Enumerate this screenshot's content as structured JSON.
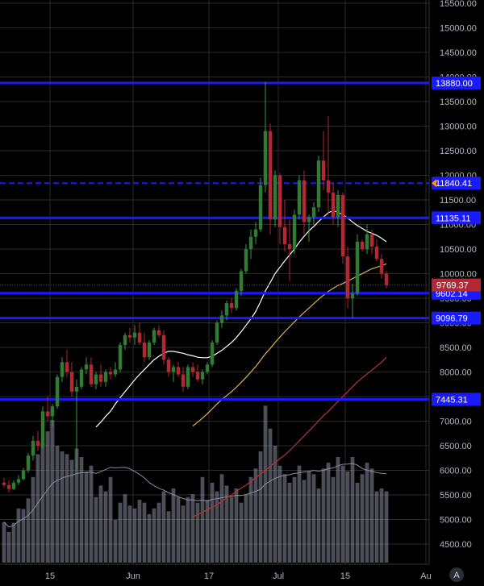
{
  "chart_data": {
    "type": "candlestick",
    "y_axis": {
      "ticks": [
        4500,
        5000,
        5500,
        6000,
        6500,
        7000,
        7500,
        8000,
        8500,
        9000,
        9500,
        10000,
        10500,
        11000,
        11500,
        12000,
        12500,
        13000,
        13500,
        14000,
        14500,
        15000,
        15500
      ],
      "tick_labels": [
        "4500.00",
        "5000.00",
        "5500.00",
        "6000.00",
        "6500.00",
        "7000.00",
        "7500.00",
        "8000.00",
        "8500.00",
        "9000.00",
        "9500.00",
        "10000.00",
        "10500.00",
        "11000.00",
        "11500.00",
        "12000.00",
        "12500.00",
        "13000.00",
        "13500.00",
        "14000.00",
        "14500.00",
        "15000.00",
        "15500.00"
      ],
      "ylim": [
        4350,
        15550
      ]
    },
    "x_axis": {
      "tick_labels": [
        "15",
        "Jun",
        "17",
        "Jul",
        "15",
        "Au"
      ]
    },
    "horizontal_levels": [
      {
        "value": 13880.0,
        "label": "13880.00",
        "style": "solid",
        "color": "#1a1aff"
      },
      {
        "value": 11840.41,
        "label": "11840.41",
        "style": "dashed",
        "color": "#1a1aff"
      },
      {
        "value": 11135.11,
        "label": "11135.11",
        "style": "solid",
        "color": "#1a1aff"
      },
      {
        "value": 9602.14,
        "label": "9602.14",
        "style": "solid",
        "color": "#1a1aff"
      },
      {
        "value": 9096.79,
        "label": "9096.79",
        "style": "solid",
        "color": "#1a1aff"
      },
      {
        "value": 7445.31,
        "label": "7445.31",
        "style": "solid",
        "color": "#1a1aff"
      }
    ],
    "last_price": {
      "value": 9769.37,
      "label": "9769.37",
      "color": "#b22833"
    },
    "candles": [
      [
        5750,
        5850,
        5650,
        5700
      ],
      [
        5700,
        5800,
        5550,
        5620
      ],
      [
        5620,
        5800,
        5600,
        5750
      ],
      [
        5750,
        5900,
        5700,
        5820
      ],
      [
        5820,
        6050,
        5800,
        6000
      ],
      [
        6000,
        6350,
        5950,
        6300
      ],
      [
        6300,
        6700,
        6200,
        6600
      ],
      [
        6600,
        6800,
        6400,
        6500
      ],
      [
        6500,
        7300,
        6450,
        7200
      ],
      [
        7200,
        7500,
        7000,
        7100
      ],
      [
        7100,
        7350,
        6900,
        7300
      ],
      [
        7300,
        7950,
        7250,
        7900
      ],
      [
        7900,
        8300,
        7800,
        8200
      ],
      [
        8200,
        8450,
        7900,
        8000
      ],
      [
        8000,
        8200,
        7500,
        7600
      ],
      [
        7600,
        7850,
        6000,
        7700
      ],
      [
        7700,
        8100,
        7650,
        8050
      ],
      [
        8050,
        8300,
        7950,
        8150
      ],
      [
        8150,
        8300,
        7700,
        7750
      ],
      [
        7750,
        8000,
        7650,
        7950
      ],
      [
        7950,
        8150,
        7700,
        7800
      ],
      [
        7800,
        8050,
        7700,
        8000
      ],
      [
        8000,
        8100,
        7850,
        7950
      ],
      [
        7950,
        8200,
        7900,
        8050
      ],
      [
        8050,
        8600,
        8000,
        8550
      ],
      [
        8550,
        8800,
        8450,
        8750
      ],
      [
        8750,
        8900,
        8600,
        8700
      ],
      [
        8700,
        8950,
        8550,
        8800
      ],
      [
        8800,
        9000,
        8550,
        8600
      ],
      [
        8600,
        8800,
        8200,
        8300
      ],
      [
        8300,
        8650,
        8250,
        8600
      ],
      [
        8600,
        8900,
        8550,
        8850
      ],
      [
        8850,
        8950,
        8700,
        8750
      ],
      [
        8750,
        8850,
        8150,
        8250
      ],
      [
        8250,
        8300,
        7900,
        8000
      ],
      [
        8000,
        8150,
        7800,
        8100
      ],
      [
        8100,
        8200,
        7900,
        7950
      ],
      [
        7950,
        8100,
        7600,
        7700
      ],
      [
        7700,
        8150,
        7650,
        8100
      ],
      [
        8100,
        8200,
        7900,
        8000
      ],
      [
        8000,
        8150,
        7800,
        7850
      ],
      [
        7850,
        8050,
        7750,
        8000
      ],
      [
        8000,
        8200,
        7950,
        8150
      ],
      [
        8150,
        8650,
        8100,
        8600
      ],
      [
        8600,
        9050,
        8550,
        9000
      ],
      [
        9000,
        9250,
        8900,
        9150
      ],
      [
        9150,
        9450,
        9050,
        9400
      ],
      [
        9400,
        9500,
        9200,
        9300
      ],
      [
        9300,
        9700,
        9250,
        9650
      ],
      [
        9650,
        10100,
        9550,
        10050
      ],
      [
        10050,
        10600,
        10000,
        10500
      ],
      [
        10500,
        10900,
        10300,
        10750
      ],
      [
        10750,
        11050,
        10600,
        10900
      ],
      [
        10900,
        11950,
        10850,
        11800
      ],
      [
        11800,
        13900,
        11650,
        12900
      ],
      [
        12900,
        13050,
        10800,
        11100
      ],
      [
        11100,
        12100,
        10950,
        12000
      ],
      [
        12000,
        12050,
        10600,
        10950
      ],
      [
        10950,
        11500,
        10450,
        10600
      ],
      [
        10600,
        11100,
        9850,
        10500
      ],
      [
        10500,
        11300,
        10400,
        11200
      ],
      [
        11200,
        12000,
        11100,
        11900
      ],
      [
        11900,
        12100,
        10800,
        11050
      ],
      [
        11050,
        11200,
        10650,
        11150
      ],
      [
        11150,
        11450,
        11000,
        11350
      ],
      [
        11350,
        12400,
        11250,
        12300
      ],
      [
        12300,
        12900,
        11700,
        11900
      ],
      [
        11900,
        13200,
        11200,
        11650
      ],
      [
        11650,
        11850,
        11000,
        11150
      ],
      [
        11150,
        11700,
        10950,
        11600
      ],
      [
        11600,
        11650,
        10200,
        10350
      ],
      [
        10350,
        10550,
        9300,
        9500
      ],
      [
        9500,
        9800,
        9100,
        9600
      ],
      [
        9600,
        10800,
        9550,
        10650
      ],
      [
        10650,
        10700,
        10450,
        10500
      ],
      [
        10500,
        11000,
        10400,
        10800
      ],
      [
        10800,
        10900,
        10400,
        10550
      ],
      [
        10550,
        10700,
        10250,
        10300
      ],
      [
        10300,
        10400,
        9900,
        10000
      ],
      [
        10000,
        10050,
        9700,
        9769.37
      ]
    ],
    "volumes": [
      1420,
      1080,
      1400,
      1900,
      1880,
      2250,
      3000,
      3800,
      4200,
      4600,
      5000,
      4100,
      3900,
      3800,
      3600,
      4000,
      3700,
      3200,
      3400,
      2300,
      2700,
      2500,
      3000,
      1500,
      2100,
      2400,
      2000,
      1900,
      2200,
      2100,
      1700,
      1900,
      2100,
      2500,
      1800,
      2600,
      2300,
      2000,
      2300,
      2400,
      2100,
      3000,
      2200,
      2800,
      2500,
      3100,
      2700,
      2300,
      2600,
      2100,
      2400,
      3000,
      3300,
      3900,
      5500,
      4700,
      4100,
      3400,
      3100,
      2800,
      3000,
      3400,
      2900,
      3200,
      3100,
      2600,
      3300,
      3500,
      3000,
      3700,
      3400,
      3200,
      3700,
      2800,
      3100,
      3500,
      3300,
      2500,
      2600,
      2500
    ],
    "sma_white": [
      null,
      null,
      null,
      null,
      null,
      null,
      null,
      null,
      null,
      null,
      null,
      null,
      null,
      null,
      null,
      null,
      null,
      null,
      null,
      6880,
      6980,
      7100,
      7200,
      7350,
      7480,
      7600,
      7720,
      7840,
      7950,
      8050,
      8150,
      8250,
      8320,
      8380,
      8420,
      8420,
      8400,
      8380,
      8350,
      8330,
      8300,
      8290,
      8290,
      8320,
      8380,
      8440,
      8520,
      8600,
      8700,
      8820,
      8950,
      9080,
      9230,
      9430,
      9650,
      9820,
      10000,
      10130,
      10260,
      10380,
      10500,
      10640,
      10760,
      10870,
      10960,
      11060,
      11150,
      11240,
      11280,
      11250,
      11200,
      11130,
      11050,
      10980,
      10920,
      10860,
      10820,
      10780,
      10720,
      10650
    ],
    "sma_orange": [
      null,
      null,
      null,
      null,
      null,
      null,
      null,
      null,
      null,
      null,
      null,
      null,
      null,
      null,
      null,
      null,
      null,
      null,
      null,
      null,
      null,
      null,
      null,
      null,
      null,
      null,
      null,
      null,
      null,
      null,
      null,
      null,
      null,
      null,
      null,
      null,
      null,
      null,
      null,
      6900,
      6980,
      7060,
      7150,
      7250,
      7350,
      7440,
      7520,
      7600,
      7690,
      7790,
      7890,
      8000,
      8110,
      8240,
      8370,
      8480,
      8600,
      8710,
      8820,
      8920,
      9020,
      9120,
      9210,
      9300,
      9390,
      9480,
      9560,
      9640,
      9700,
      9760,
      9800,
      9850,
      9900,
      9950,
      10000,
      10050,
      10100,
      10130,
      10160,
      10200
    ],
    "sma_red": [
      null,
      null,
      null,
      null,
      null,
      null,
      null,
      null,
      null,
      null,
      null,
      null,
      null,
      null,
      null,
      null,
      null,
      null,
      null,
      null,
      null,
      null,
      null,
      null,
      null,
      null,
      null,
      null,
      null,
      null,
      null,
      null,
      null,
      null,
      null,
      null,
      null,
      null,
      null,
      5050,
      5100,
      5150,
      5200,
      5250,
      5300,
      5370,
      5440,
      5500,
      5570,
      5640,
      5700,
      5770,
      5850,
      5920,
      6000,
      6080,
      6160,
      6240,
      6310,
      6400,
      6500,
      6600,
      6700,
      6800,
      6900,
      7010,
      7110,
      7200,
      7300,
      7400,
      7500,
      7600,
      7700,
      7800,
      7880,
      7960,
      8040,
      8120,
      8200,
      8300
    ]
  },
  "ui": {
    "bottom_right_icon": "A"
  },
  "colors": {
    "up": "#26a69a",
    "up_body": "#2e7d32",
    "down": "#b22833",
    "volume": "#8a8ea0",
    "grid": "#2a2a2a",
    "level": "#1a1aff",
    "sma_white": "#ffffff",
    "sma_orange": "#e0b050",
    "sma_red": "#c03030"
  }
}
